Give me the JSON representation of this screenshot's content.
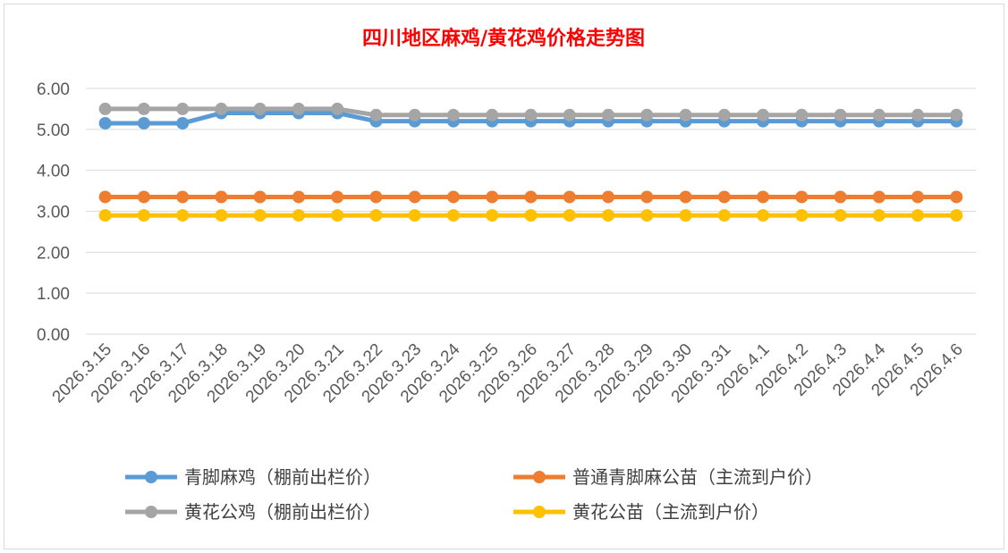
{
  "chart_data": {
    "type": "line",
    "title": "四川地区麻鸡/黄花鸡价格走势图",
    "xlabel": "",
    "ylabel": "",
    "ylim": [
      0,
      6
    ],
    "yticks": [
      "0.00",
      "1.00",
      "2.00",
      "3.00",
      "4.00",
      "5.00",
      "6.00"
    ],
    "grid": true,
    "legend_position": "bottom",
    "categories": [
      "2026.3.15",
      "2026.3.16",
      "2026.3.17",
      "2026.3.18",
      "2026.3.19",
      "2026.3.20",
      "2026.3.21",
      "2026.3.22",
      "2026.3.23",
      "2026.3.24",
      "2026.3.25",
      "2026.3.26",
      "2026.3.27",
      "2026.3.28",
      "2026.3.29",
      "2026.3.30",
      "2026.3.31",
      "2026.4.1",
      "2026.4.2",
      "2026.4.3",
      "2026.4.4",
      "2026.4.5",
      "2026.4.6"
    ],
    "series": [
      {
        "name": "青脚麻鸡（棚前出栏价）",
        "color": "#5b9bd5",
        "values": [
          5.15,
          5.15,
          5.15,
          5.4,
          5.4,
          5.4,
          5.4,
          5.2,
          5.2,
          5.2,
          5.2,
          5.2,
          5.2,
          5.2,
          5.2,
          5.2,
          5.2,
          5.2,
          5.2,
          5.2,
          5.2,
          5.2,
          5.2
        ]
      },
      {
        "name": "普通青脚麻公苗（主流到户价）",
        "color": "#ed7d31",
        "values": [
          3.35,
          3.35,
          3.35,
          3.35,
          3.35,
          3.35,
          3.35,
          3.35,
          3.35,
          3.35,
          3.35,
          3.35,
          3.35,
          3.35,
          3.35,
          3.35,
          3.35,
          3.35,
          3.35,
          3.35,
          3.35,
          3.35,
          3.35
        ]
      },
      {
        "name": "黄花公鸡（棚前出栏价）",
        "color": "#a5a5a5",
        "values": [
          5.5,
          5.5,
          5.5,
          5.5,
          5.5,
          5.5,
          5.5,
          5.35,
          5.35,
          5.35,
          5.35,
          5.35,
          5.35,
          5.35,
          5.35,
          5.35,
          5.35,
          5.35,
          5.35,
          5.35,
          5.35,
          5.35,
          5.35
        ]
      },
      {
        "name": "黄花公苗（主流到户价）",
        "color": "#ffc000",
        "values": [
          2.9,
          2.9,
          2.9,
          2.9,
          2.9,
          2.9,
          2.9,
          2.9,
          2.9,
          2.9,
          2.9,
          2.9,
          2.9,
          2.9,
          2.9,
          2.9,
          2.9,
          2.9,
          2.9,
          2.9,
          2.9,
          2.9,
          2.9
        ]
      }
    ]
  }
}
